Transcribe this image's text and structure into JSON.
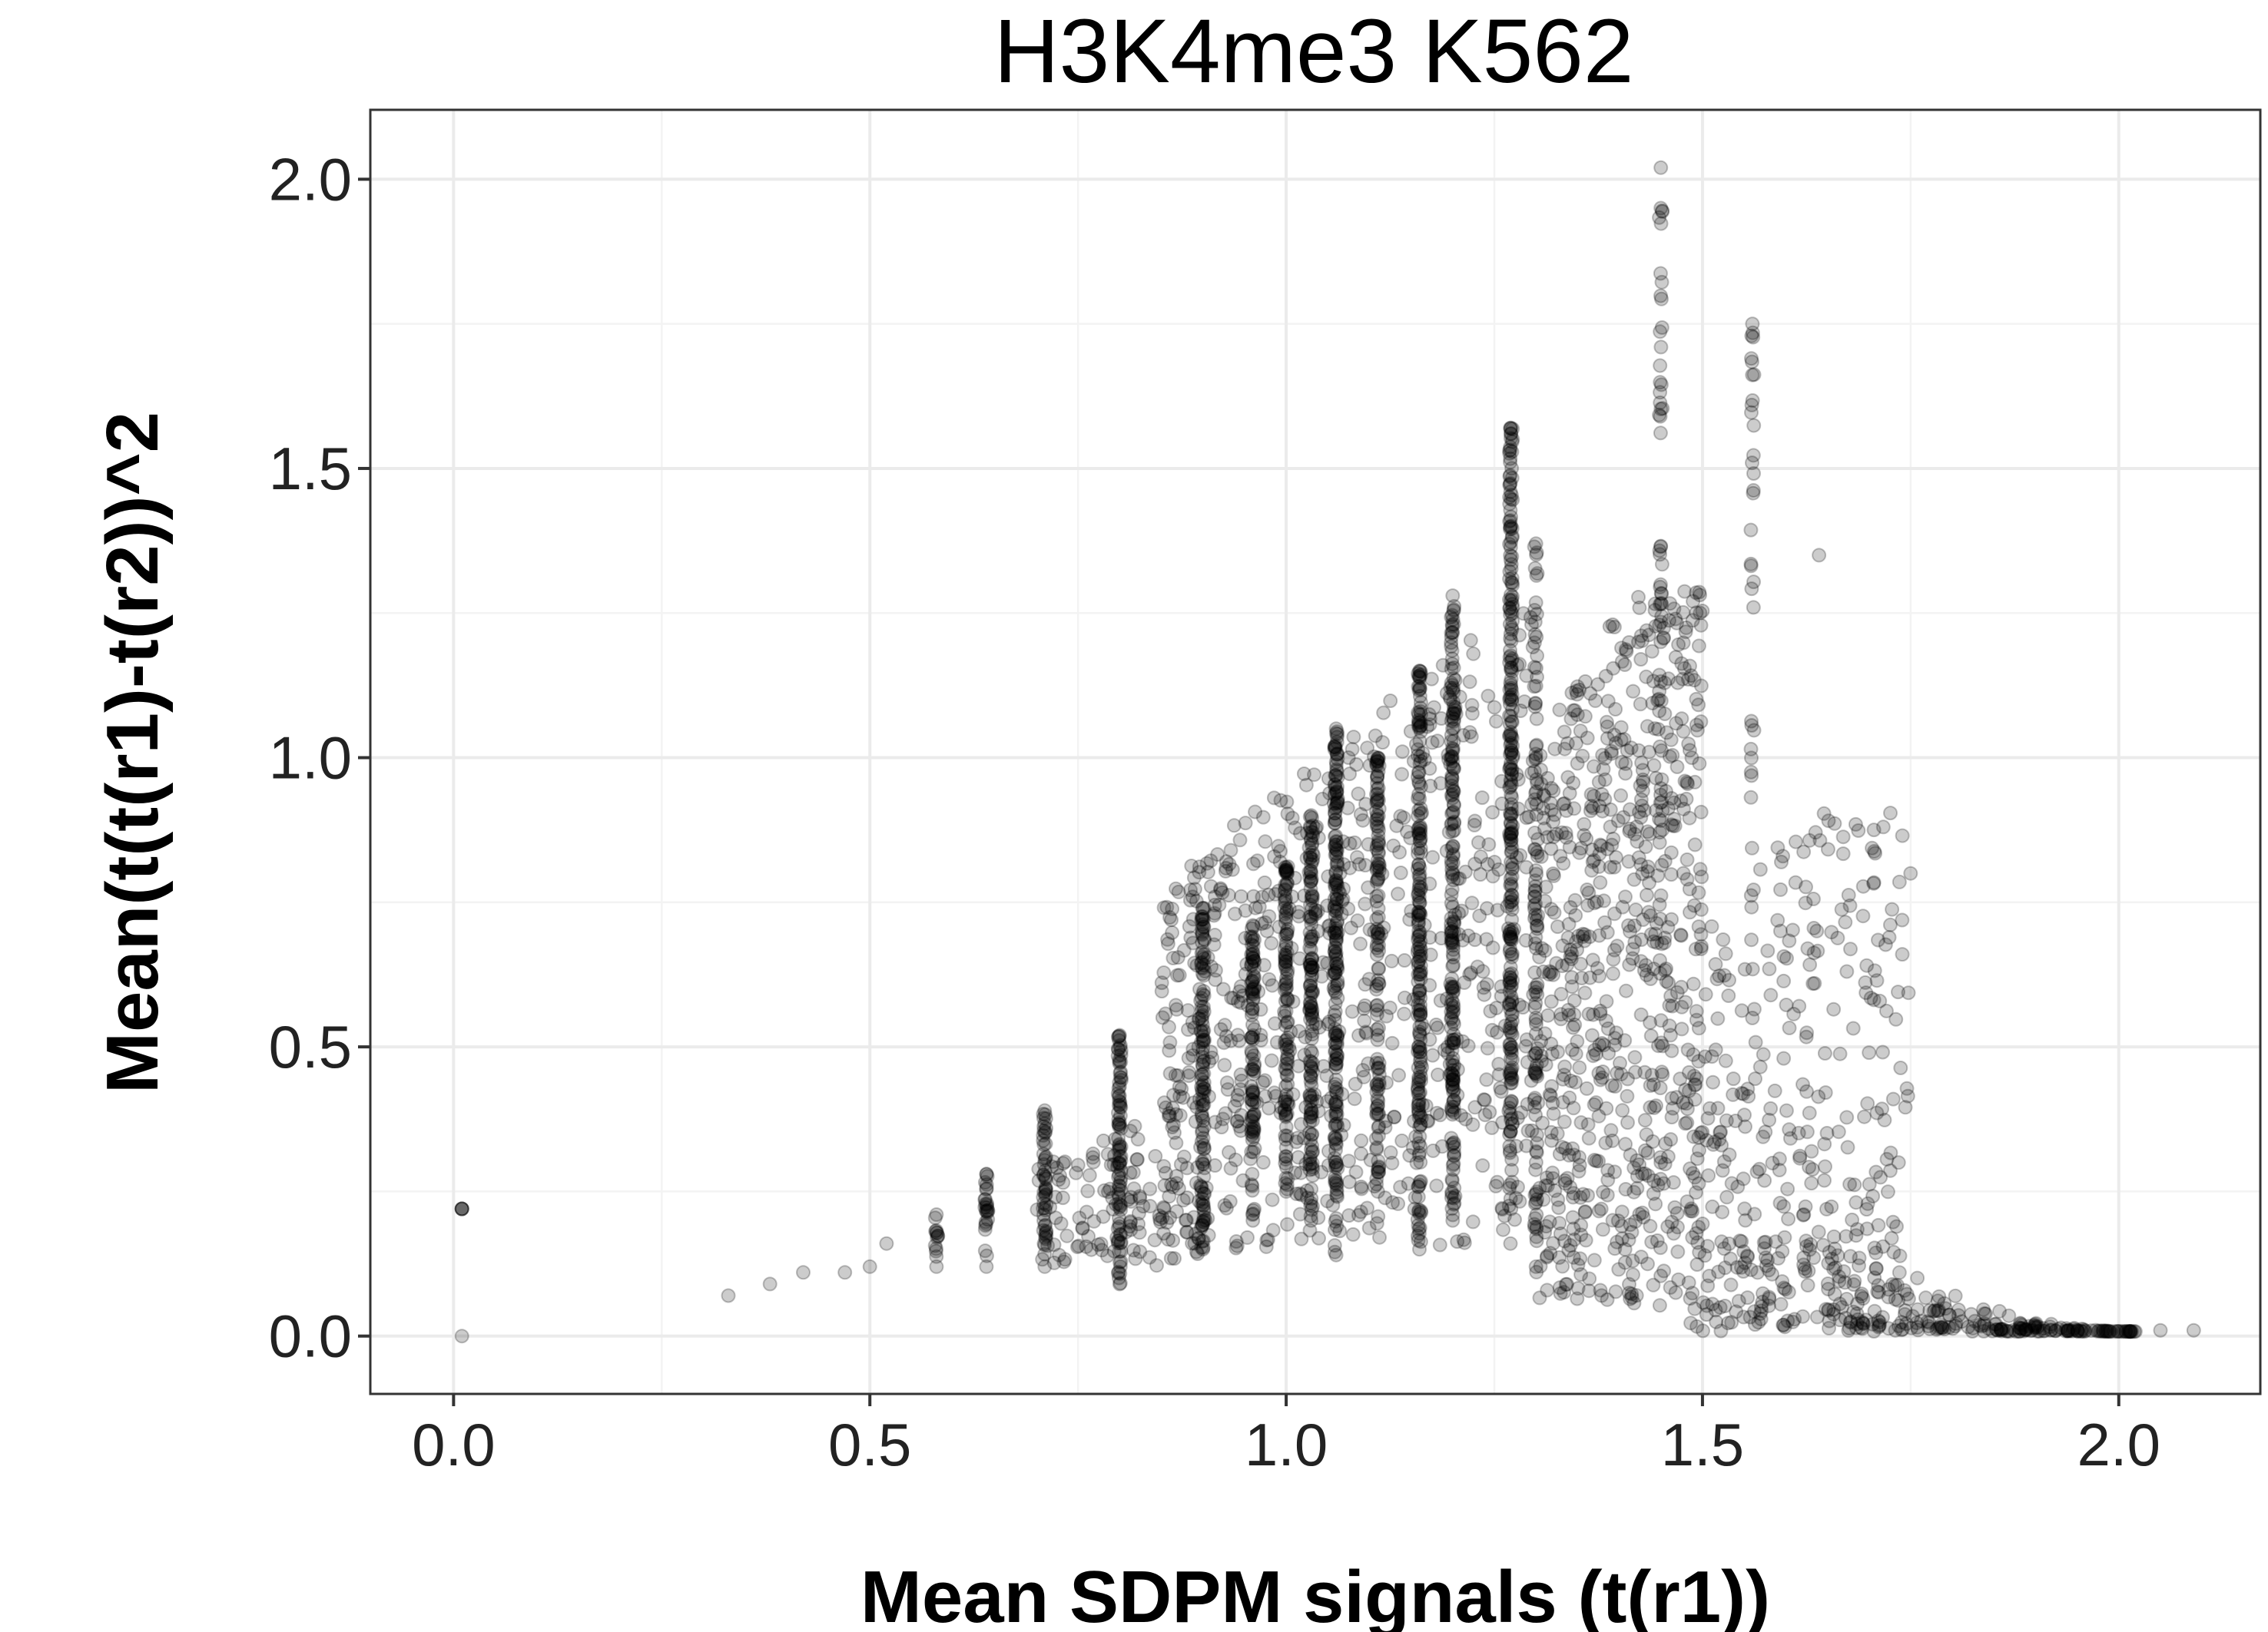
{
  "chart_data": {
    "type": "scatter",
    "title": "H3K4me3 K562",
    "xlabel": "Mean SDPM signals (t(r1))",
    "ylabel": "Mean(t(t(r1)-t(r2))^2",
    "xlim": [
      -0.1,
      2.17
    ],
    "ylim": [
      -0.1,
      2.12
    ],
    "x_ticks": [
      0.0,
      0.5,
      1.0,
      1.5,
      2.0
    ],
    "y_ticks": [
      0.0,
      0.5,
      1.0,
      1.5,
      2.0
    ],
    "x_tick_labels": [
      "0.0",
      "0.5",
      "1.0",
      "1.5",
      "2.0"
    ],
    "y_tick_labels": [
      "0.0",
      "0.5",
      "1.0",
      "1.5",
      "2.0"
    ],
    "grid": true,
    "legend": "none",
    "point_color": "#000000",
    "point_opacity": 0.2,
    "columns": [
      {
        "x": 0.58,
        "y_min": 0.12,
        "y_max": 0.21,
        "n": 12
      },
      {
        "x": 0.64,
        "y_min": 0.12,
        "y_max": 0.28,
        "n": 25
      },
      {
        "x": 0.71,
        "y_min": 0.12,
        "y_max": 0.39,
        "n": 50
      },
      {
        "x": 0.8,
        "y_min": 0.09,
        "y_max": 0.52,
        "n": 90
      },
      {
        "x": 0.9,
        "y_min": 0.15,
        "y_max": 0.74,
        "n": 110
      },
      {
        "x": 0.96,
        "y_min": 0.2,
        "y_max": 0.71,
        "n": 90
      },
      {
        "x": 1.0,
        "y_min": 0.25,
        "y_max": 0.81,
        "n": 100
      },
      {
        "x": 1.03,
        "y_min": 0.2,
        "y_max": 0.9,
        "n": 140
      },
      {
        "x": 1.06,
        "y_min": 0.14,
        "y_max": 1.05,
        "n": 190
      },
      {
        "x": 1.11,
        "y_min": 0.25,
        "y_max": 1.0,
        "n": 120
      },
      {
        "x": 1.16,
        "y_min": 0.15,
        "y_max": 1.15,
        "n": 190
      },
      {
        "x": 1.2,
        "y_min": 0.2,
        "y_max": 1.28,
        "n": 190
      },
      {
        "x": 1.27,
        "y_min": 0.22,
        "y_max": 1.57,
        "n": 250
      },
      {
        "x": 1.3,
        "y_min": 0.12,
        "y_max": 1.37,
        "n": 90
      },
      {
        "x": 1.45,
        "y_min": 0.3,
        "y_max": 1.95,
        "n": 60
      },
      {
        "x": 1.56,
        "y_min": 0.55,
        "y_max": 1.75,
        "n": 35
      }
    ],
    "cloud": [
      {
        "x_min": 0.85,
        "x_max": 1.3,
        "y_min": 0.15,
        "y_max": 1.3,
        "n": 700
      },
      {
        "x_min": 1.3,
        "x_max": 1.5,
        "y_min": 0.05,
        "y_max": 1.75,
        "n": 700
      },
      {
        "x_min": 1.5,
        "x_max": 1.75,
        "y_min": 0.02,
        "y_max": 1.25,
        "n": 260
      },
      {
        "x_min": 0.7,
        "x_max": 0.9,
        "y_min": 0.12,
        "y_max": 0.45,
        "n": 140
      }
    ],
    "tail_decay": {
      "x_start": 1.48,
      "x_end": 2.02,
      "y_start": 0.6,
      "y_end": 0.0,
      "n": 320
    },
    "points": [
      {
        "x": 0.33,
        "y": 0.07
      },
      {
        "x": 0.38,
        "y": 0.09
      },
      {
        "x": 0.42,
        "y": 0.11
      },
      {
        "x": 0.47,
        "y": 0.11
      },
      {
        "x": 0.5,
        "y": 0.12
      },
      {
        "x": 0.52,
        "y": 0.16
      },
      {
        "x": 0.01,
        "y": 0.0
      },
      {
        "x": 0.01,
        "y": 0.22
      },
      {
        "x": 0.01,
        "y": 0.22
      },
      {
        "x": 0.01,
        "y": 0.22
      },
      {
        "x": 0.01,
        "y": 0.22
      },
      {
        "x": 1.45,
        "y": 2.02
      },
      {
        "x": 1.75,
        "y": 0.8
      },
      {
        "x": 1.74,
        "y": 0.66
      },
      {
        "x": 1.7,
        "y": 0.49
      },
      {
        "x": 1.64,
        "y": 1.35
      },
      {
        "x": 2.09,
        "y": 0.01
      },
      {
        "x": 2.05,
        "y": 0.01
      }
    ]
  }
}
